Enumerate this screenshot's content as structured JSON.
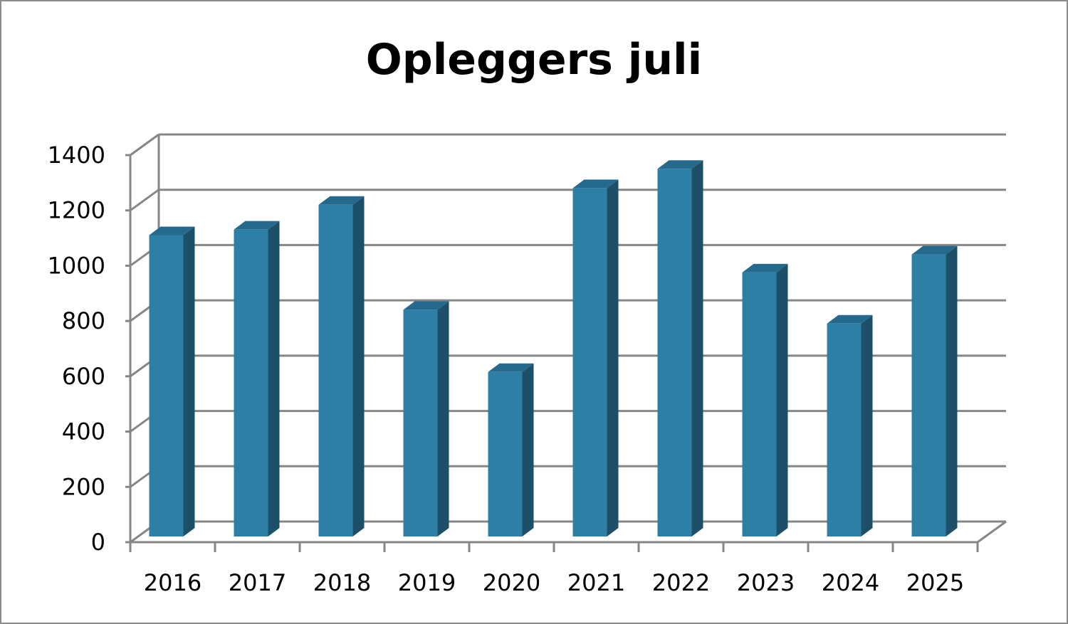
{
  "chart_data": {
    "type": "bar",
    "title": "Opleggers juli",
    "categories": [
      "2016",
      "2017",
      "2018",
      "2019",
      "2020",
      "2021",
      "2022",
      "2023",
      "2024",
      "2025"
    ],
    "values": [
      1090,
      1110,
      1200,
      820,
      595,
      1260,
      1330,
      955,
      770,
      1020
    ],
    "y_ticks": [
      "0",
      "200",
      "400",
      "600",
      "800",
      "1000",
      "1200",
      "1400"
    ],
    "ylim": [
      0,
      1400
    ],
    "grid": true,
    "legend": "none",
    "style": "3d-column",
    "colors": {
      "bar_front": "#2e7fa6",
      "bar_side": "#1d5068",
      "bar_top": "#25698c",
      "grid": "#868686"
    }
  }
}
